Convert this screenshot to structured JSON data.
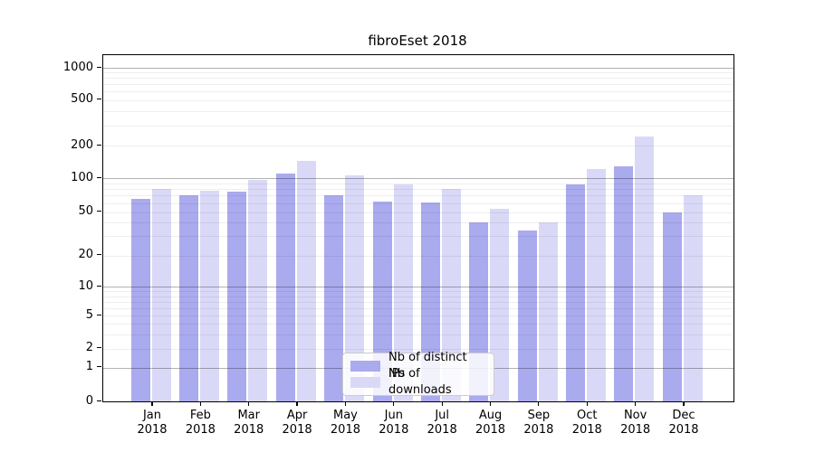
{
  "title": "fibroEset 2018",
  "chart_data": {
    "type": "bar",
    "title": "fibroEset 2018",
    "categories": [
      "Jan",
      "Feb",
      "Mar",
      "Apr",
      "May",
      "Jun",
      "Jul",
      "Aug",
      "Sep",
      "Oct",
      "Nov",
      "Dec"
    ],
    "year": "2018",
    "series": [
      {
        "name": "Nb of distinct IPs",
        "color": "#aaaaee",
        "values": [
          66,
          71,
          76,
          110,
          70,
          62,
          61,
          40,
          34,
          88,
          128,
          50
        ]
      },
      {
        "name": "Nb of downloads",
        "color": "#d9d9f7",
        "values": [
          80,
          78,
          97,
          145,
          106,
          89,
          80,
          53,
          40,
          122,
          240,
          70
        ]
      }
    ],
    "yscale": "symlog",
    "yticks": [
      0,
      1,
      2,
      5,
      10,
      20,
      50,
      100,
      200,
      500,
      1000
    ],
    "ylim": [
      0,
      1400
    ],
    "grid": true,
    "legend_position": "lower-center-inside"
  },
  "colors": {
    "bar_dark": "#aaaaee",
    "bar_light": "#d9d9f7",
    "grid_major": "#b3b3b3",
    "grid_minor": "#ebebeb",
    "axis": "#000000",
    "background": "#ffffff"
  }
}
